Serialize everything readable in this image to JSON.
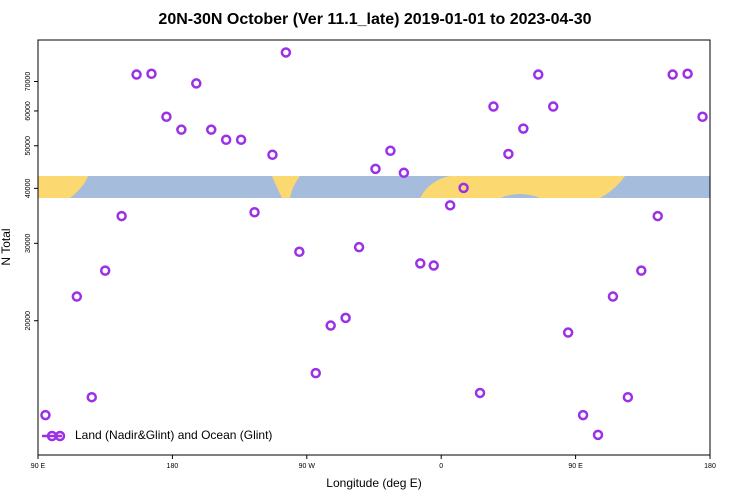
{
  "chart_data": {
    "type": "scatter",
    "title": "20N-30N October (Ver 11.1_late)   2019-01-01 to 2023-04-30",
    "x_label": "Longitude (deg E)",
    "y_label": "N Total",
    "xlim": [
      90,
      540
    ],
    "xticks": [
      {
        "value": 90,
        "label": "90 E"
      },
      180,
      {
        "value": 270,
        "label": "90 W"
      },
      {
        "value": 360,
        "label": "0"
      },
      {
        "value": 450,
        "label": "90 E"
      },
      {
        "value": 540,
        "label": "180"
      }
    ],
    "ylim": [
      9900,
      87000
    ],
    "yticks": [
      20000,
      30000,
      40000,
      50000,
      60000,
      70000
    ],
    "log_y": true,
    "legend_position": "bottom-left",
    "series": [
      {
        "name": "Land (Nadir&Glint) and Ocean (Glint)",
        "color": "#9b30e6",
        "x": [
          95,
          116,
          126,
          135,
          146,
          156,
          166,
          176,
          186,
          196,
          206,
          216,
          226,
          235,
          247,
          256,
          265,
          276,
          286,
          296,
          305,
          316,
          326,
          335,
          346,
          355,
          366,
          375,
          386,
          395,
          405,
          415,
          425,
          435,
          445,
          455,
          465,
          475,
          485,
          494,
          505,
          515,
          525,
          535
        ],
        "values": [
          12200,
          22700,
          13400,
          26000,
          34600,
          72600,
          72900,
          58200,
          54400,
          69300,
          54400,
          51600,
          51600,
          35300,
          47700,
          81500,
          28700,
          15200,
          19500,
          20300,
          29400,
          44300,
          48700,
          43400,
          27000,
          26700,
          36600,
          40100,
          13700,
          61400,
          47900,
          54700,
          72600,
          61400,
          18800,
          12200,
          11000,
          22700,
          13400,
          26000,
          34600,
          72600,
          72900,
          58200
        ]
      }
    ]
  }
}
